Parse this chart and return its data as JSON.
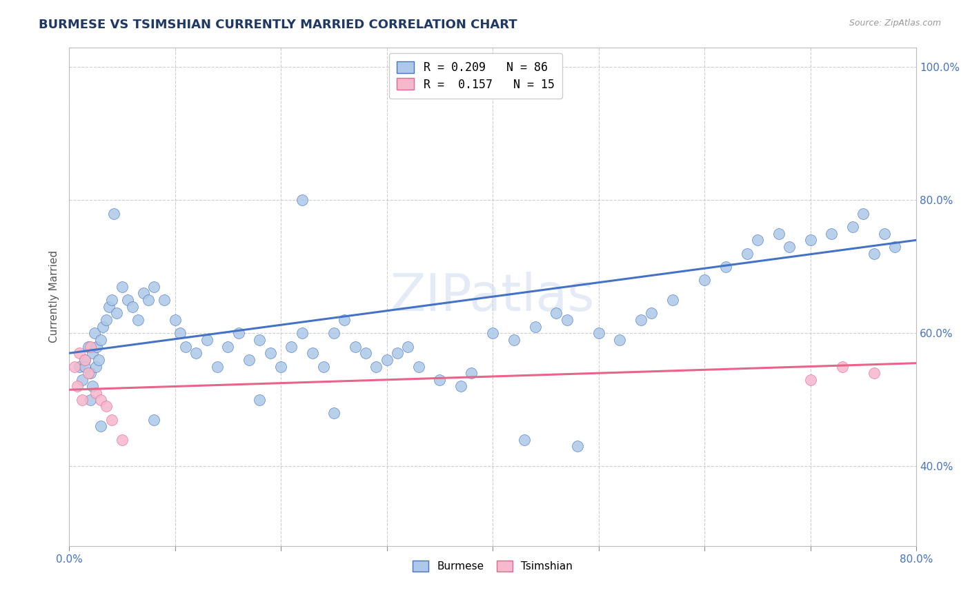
{
  "title": "BURMESE VS TSIMSHIAN CURRENTLY MARRIED CORRELATION CHART",
  "source_text": "Source: ZipAtlas.com",
  "ylabel": "Currently Married",
  "xlim": [
    0.0,
    80.0
  ],
  "ylim": [
    28.0,
    103.0
  ],
  "ytick_values": [
    40.0,
    60.0,
    80.0,
    100.0
  ],
  "watermark": "ZIPatlas",
  "legend_burmese_label": "R = 0.209   N = 86",
  "legend_tsimshian_label": "R =  0.157   N = 15",
  "burmese_color": "#adc8e8",
  "tsimshian_color": "#f5b8cc",
  "burmese_line_color": "#4472c4",
  "tsimshian_line_color": "#e8648a",
  "burmese_line": {
    "x0": 0.0,
    "x1": 80.0,
    "y0": 57.0,
    "y1": 74.0
  },
  "tsimshian_line": {
    "x0": 0.0,
    "x1": 80.0,
    "y0": 51.5,
    "y1": 55.5
  },
  "background_color": "#ffffff",
  "grid_color": "#c8c8c8",
  "title_color": "#1f3864",
  "axis_tick_color": "#4472c4",
  "burmese_x": [
    1.0,
    1.2,
    1.5,
    1.8,
    2.0,
    2.2,
    2.4,
    2.5,
    2.6,
    2.8,
    3.0,
    3.2,
    3.5,
    3.8,
    4.0,
    4.5,
    5.0,
    5.5,
    6.0,
    6.5,
    7.0,
    7.5,
    8.0,
    9.0,
    10.0,
    10.5,
    11.0,
    12.0,
    13.0,
    14.0,
    15.0,
    16.0,
    17.0,
    18.0,
    19.0,
    20.0,
    21.0,
    22.0,
    23.0,
    24.0,
    25.0,
    26.0,
    27.0,
    28.0,
    29.0,
    30.0,
    31.0,
    32.0,
    33.0,
    35.0,
    37.0,
    38.0,
    40.0,
    42.0,
    44.0,
    46.0,
    47.0,
    50.0,
    52.0,
    54.0,
    55.0,
    57.0,
    60.0,
    62.0,
    64.0,
    65.0,
    67.0,
    68.0,
    70.0,
    72.0,
    74.0,
    75.0,
    76.0,
    77.0,
    78.0,
    43.0,
    18.0,
    25.0,
    8.0,
    3.0,
    2.0,
    1.5,
    2.2,
    4.2,
    22.0,
    48.0
  ],
  "burmese_y": [
    55.0,
    53.0,
    56.0,
    58.0,
    54.0,
    57.0,
    60.0,
    55.0,
    58.0,
    56.0,
    59.0,
    61.0,
    62.0,
    64.0,
    65.0,
    63.0,
    67.0,
    65.0,
    64.0,
    62.0,
    66.0,
    65.0,
    67.0,
    65.0,
    62.0,
    60.0,
    58.0,
    57.0,
    59.0,
    55.0,
    58.0,
    60.0,
    56.0,
    59.0,
    57.0,
    55.0,
    58.0,
    60.0,
    57.0,
    55.0,
    60.0,
    62.0,
    58.0,
    57.0,
    55.0,
    56.0,
    57.0,
    58.0,
    55.0,
    53.0,
    52.0,
    54.0,
    60.0,
    59.0,
    61.0,
    63.0,
    62.0,
    60.0,
    59.0,
    62.0,
    63.0,
    65.0,
    68.0,
    70.0,
    72.0,
    74.0,
    75.0,
    73.0,
    74.0,
    75.0,
    76.0,
    78.0,
    72.0,
    75.0,
    73.0,
    44.0,
    50.0,
    48.0,
    47.0,
    46.0,
    50.0,
    55.0,
    52.0,
    78.0,
    80.0,
    43.0
  ],
  "tsimshian_x": [
    0.5,
    0.8,
    1.0,
    1.2,
    1.5,
    1.8,
    2.0,
    2.5,
    3.0,
    3.5,
    4.0,
    5.0,
    70.0,
    73.0,
    76.0
  ],
  "tsimshian_y": [
    55.0,
    52.0,
    57.0,
    50.0,
    56.0,
    54.0,
    58.0,
    51.0,
    50.0,
    49.0,
    47.0,
    44.0,
    53.0,
    55.0,
    54.0
  ]
}
